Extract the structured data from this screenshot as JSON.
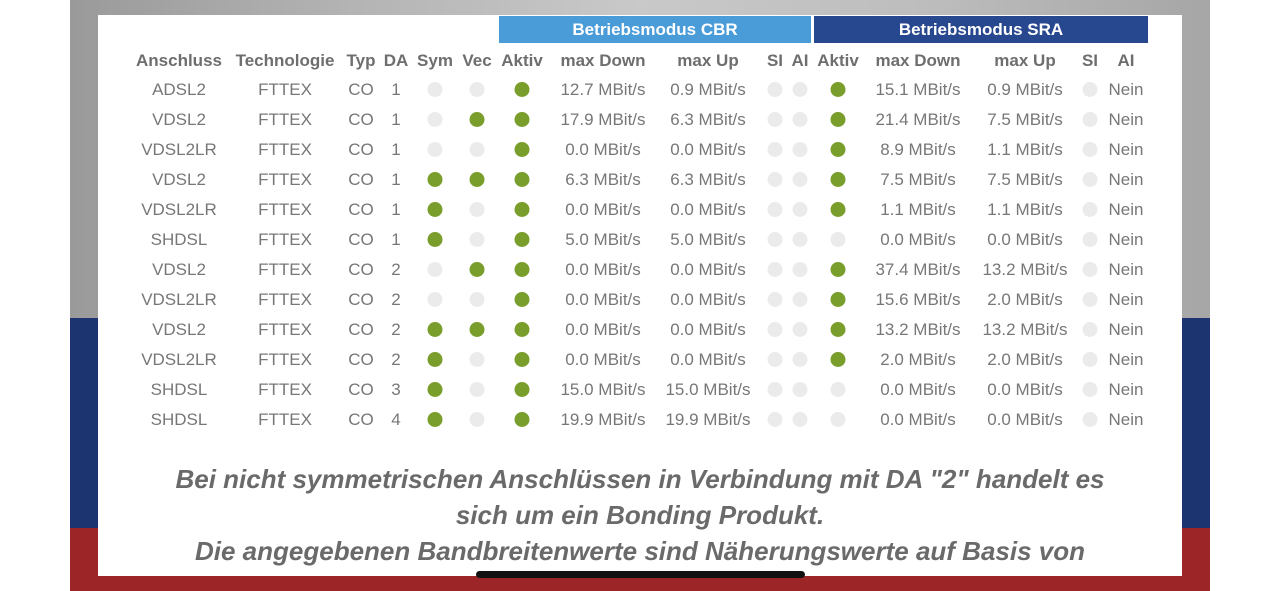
{
  "headers": {
    "cbr": "Betriebsmodus CBR",
    "sra": "Betriebsmodus SRA"
  },
  "columns": [
    "Anschluss",
    "Technologie",
    "Typ",
    "DA",
    "Sym",
    "Vec",
    "Aktiv",
    "max Down",
    "max Up",
    "SI",
    "AI",
    "Aktiv",
    "max Down",
    "max Up",
    "SI",
    "AI"
  ],
  "rows": [
    {
      "anschluss": "ADSL2",
      "technologie": "FTTEX",
      "typ": "CO",
      "da": "1",
      "sym": false,
      "vec": false,
      "cbr_aktiv": true,
      "cbr_down": "12.7 MBit/s",
      "cbr_up": "0.9 MBit/s",
      "cbr_si": false,
      "cbr_ai": false,
      "sra_aktiv": true,
      "sra_down": "15.1 MBit/s",
      "sra_up": "0.9 MBit/s",
      "sra_si": false,
      "sra_ai": "Nein"
    },
    {
      "anschluss": "VDSL2",
      "technologie": "FTTEX",
      "typ": "CO",
      "da": "1",
      "sym": false,
      "vec": true,
      "cbr_aktiv": true,
      "cbr_down": "17.9 MBit/s",
      "cbr_up": "6.3 MBit/s",
      "cbr_si": false,
      "cbr_ai": false,
      "sra_aktiv": true,
      "sra_down": "21.4 MBit/s",
      "sra_up": "7.5 MBit/s",
      "sra_si": false,
      "sra_ai": "Nein"
    },
    {
      "anschluss": "VDSL2LR",
      "technologie": "FTTEX",
      "typ": "CO",
      "da": "1",
      "sym": false,
      "vec": false,
      "cbr_aktiv": true,
      "cbr_down": "0.0 MBit/s",
      "cbr_up": "0.0 MBit/s",
      "cbr_si": false,
      "cbr_ai": false,
      "sra_aktiv": true,
      "sra_down": "8.9 MBit/s",
      "sra_up": "1.1 MBit/s",
      "sra_si": false,
      "sra_ai": "Nein"
    },
    {
      "anschluss": "VDSL2",
      "technologie": "FTTEX",
      "typ": "CO",
      "da": "1",
      "sym": true,
      "vec": true,
      "cbr_aktiv": true,
      "cbr_down": "6.3 MBit/s",
      "cbr_up": "6.3 MBit/s",
      "cbr_si": false,
      "cbr_ai": false,
      "sra_aktiv": true,
      "sra_down": "7.5 MBit/s",
      "sra_up": "7.5 MBit/s",
      "sra_si": false,
      "sra_ai": "Nein"
    },
    {
      "anschluss": "VDSL2LR",
      "technologie": "FTTEX",
      "typ": "CO",
      "da": "1",
      "sym": true,
      "vec": false,
      "cbr_aktiv": true,
      "cbr_down": "0.0 MBit/s",
      "cbr_up": "0.0 MBit/s",
      "cbr_si": false,
      "cbr_ai": false,
      "sra_aktiv": true,
      "sra_down": "1.1 MBit/s",
      "sra_up": "1.1 MBit/s",
      "sra_si": false,
      "sra_ai": "Nein"
    },
    {
      "anschluss": "SHDSL",
      "technologie": "FTTEX",
      "typ": "CO",
      "da": "1",
      "sym": true,
      "vec": false,
      "cbr_aktiv": true,
      "cbr_down": "5.0 MBit/s",
      "cbr_up": "5.0 MBit/s",
      "cbr_si": false,
      "cbr_ai": false,
      "sra_aktiv": false,
      "sra_down": "0.0 MBit/s",
      "sra_up": "0.0 MBit/s",
      "sra_si": false,
      "sra_ai": "Nein"
    },
    {
      "anschluss": "VDSL2",
      "technologie": "FTTEX",
      "typ": "CO",
      "da": "2",
      "sym": false,
      "vec": true,
      "cbr_aktiv": true,
      "cbr_down": "0.0 MBit/s",
      "cbr_up": "0.0 MBit/s",
      "cbr_si": false,
      "cbr_ai": false,
      "sra_aktiv": true,
      "sra_down": "37.4 MBit/s",
      "sra_up": "13.2 MBit/s",
      "sra_si": false,
      "sra_ai": "Nein"
    },
    {
      "anschluss": "VDSL2LR",
      "technologie": "FTTEX",
      "typ": "CO",
      "da": "2",
      "sym": false,
      "vec": false,
      "cbr_aktiv": true,
      "cbr_down": "0.0 MBit/s",
      "cbr_up": "0.0 MBit/s",
      "cbr_si": false,
      "cbr_ai": false,
      "sra_aktiv": true,
      "sra_down": "15.6 MBit/s",
      "sra_up": "2.0 MBit/s",
      "sra_si": false,
      "sra_ai": "Nein"
    },
    {
      "anschluss": "VDSL2",
      "technologie": "FTTEX",
      "typ": "CO",
      "da": "2",
      "sym": true,
      "vec": true,
      "cbr_aktiv": true,
      "cbr_down": "0.0 MBit/s",
      "cbr_up": "0.0 MBit/s",
      "cbr_si": false,
      "cbr_ai": false,
      "sra_aktiv": true,
      "sra_down": "13.2 MBit/s",
      "sra_up": "13.2 MBit/s",
      "sra_si": false,
      "sra_ai": "Nein"
    },
    {
      "anschluss": "VDSL2LR",
      "technologie": "FTTEX",
      "typ": "CO",
      "da": "2",
      "sym": true,
      "vec": false,
      "cbr_aktiv": true,
      "cbr_down": "0.0 MBit/s",
      "cbr_up": "0.0 MBit/s",
      "cbr_si": false,
      "cbr_ai": false,
      "sra_aktiv": true,
      "sra_down": "2.0 MBit/s",
      "sra_up": "2.0 MBit/s",
      "sra_si": false,
      "sra_ai": "Nein"
    },
    {
      "anschluss": "SHDSL",
      "technologie": "FTTEX",
      "typ": "CO",
      "da": "3",
      "sym": true,
      "vec": false,
      "cbr_aktiv": true,
      "cbr_down": "15.0 MBit/s",
      "cbr_up": "15.0 MBit/s",
      "cbr_si": false,
      "cbr_ai": false,
      "sra_aktiv": false,
      "sra_down": "0.0 MBit/s",
      "sra_up": "0.0 MBit/s",
      "sra_si": false,
      "sra_ai": "Nein"
    },
    {
      "anschluss": "SHDSL",
      "technologie": "FTTEX",
      "typ": "CO",
      "da": "4",
      "sym": true,
      "vec": false,
      "cbr_aktiv": true,
      "cbr_down": "19.9 MBit/s",
      "cbr_up": "19.9 MBit/s",
      "cbr_si": false,
      "cbr_ai": false,
      "sra_aktiv": false,
      "sra_down": "0.0 MBit/s",
      "sra_up": "0.0 MBit/s",
      "sra_si": false,
      "sra_ai": "Nein"
    }
  ],
  "note": {
    "line1": "Bei nicht symmetrischen Anschlüssen in Verbindung mit DA \"2\" handelt es",
    "line2": "sich um ein Bonding Produkt.",
    "line3": "Die angegebenen Bandbreitenwerte sind Näherungswerte auf Basis von"
  },
  "colors": {
    "dot_active": "#7a9e2c",
    "dot_inactive": "#ebebeb",
    "header_cbr": "#4a9cd8",
    "header_sra": "#27478f",
    "bg_blue": "#1c3570",
    "bg_red": "#9b2527"
  }
}
